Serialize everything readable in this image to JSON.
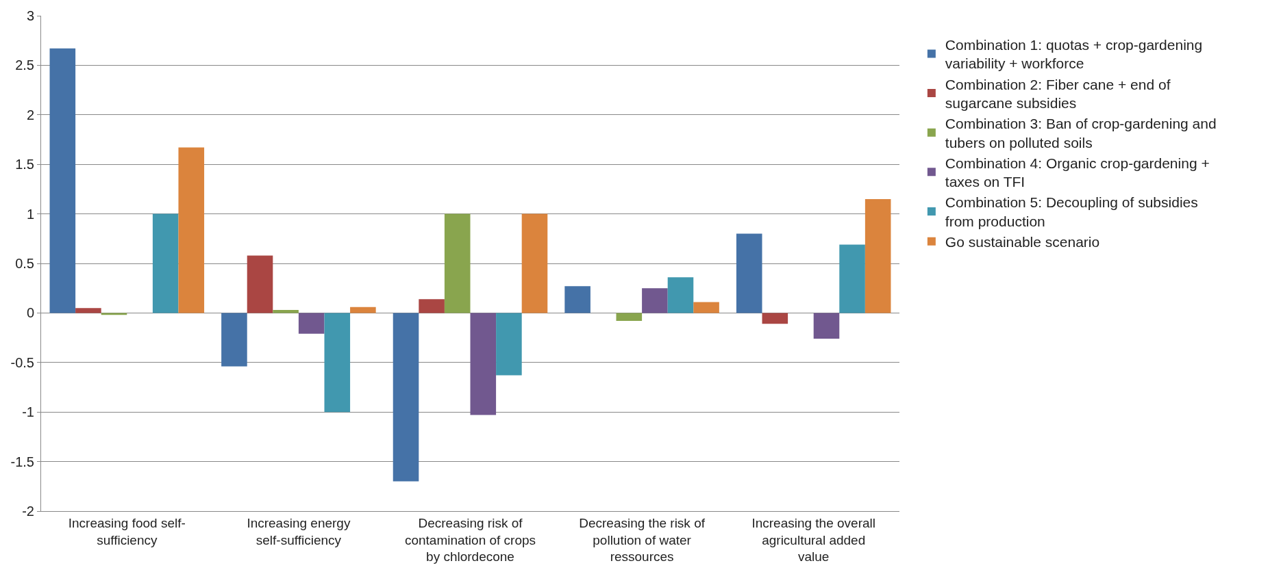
{
  "chart_data": {
    "type": "bar",
    "categories": [
      "Increasing food self-sufficiency",
      "Increasing energy self-sufficiency",
      "Decreasing risk of contamination of crops by chlordecone",
      "Decreasing the risk of pollution of water ressources",
      "Increasing the overall agricultural added value"
    ],
    "series": [
      {
        "name": "Combination 1: quotas + crop-gardening variability + workforce",
        "color": "#4572a7",
        "values": [
          2.67,
          -0.54,
          -1.7,
          0.27,
          0.8
        ]
      },
      {
        "name": "Combination 2: Fiber cane + end of sugarcane subsidies",
        "color": "#aa4643",
        "values": [
          0.05,
          0.58,
          0.14,
          0,
          -0.11
        ]
      },
      {
        "name": "Combination 3: Ban of crop-gardening and tubers on polluted soils",
        "color": "#89a54e",
        "values": [
          -0.02,
          0.03,
          1.0,
          -0.08,
          0
        ]
      },
      {
        "name": "Combination 4: Organic crop-gardening + taxes on TFI",
        "color": "#71588f",
        "values": [
          0,
          -0.21,
          -1.03,
          0.25,
          -0.26
        ]
      },
      {
        "name": "Combination 5: Decoupling of subsidies from production",
        "color": "#4198af",
        "values": [
          1.0,
          -1.0,
          -0.63,
          0.36,
          0.69
        ]
      },
      {
        "name": "Go sustainable scenario",
        "color": "#db843d",
        "values": [
          1.67,
          0.06,
          1.0,
          0.11,
          1.15
        ]
      }
    ],
    "ylim": [
      -2,
      3
    ],
    "yticks": [
      -2,
      -1.5,
      -1,
      -0.5,
      0,
      0.5,
      1,
      1.5,
      2,
      2.5,
      3
    ],
    "grid": "y",
    "legend": "right"
  }
}
